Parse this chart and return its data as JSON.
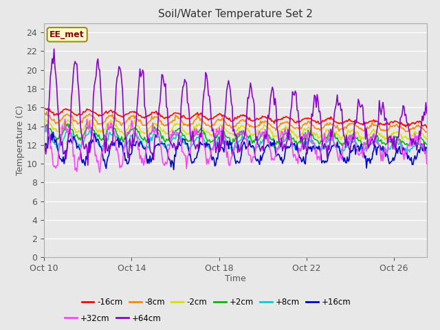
{
  "title": "Soil/Water Temperature Set 2",
  "xlabel": "Time",
  "ylabel": "Temperature (C)",
  "annotation": "EE_met",
  "ylim": [
    0,
    25
  ],
  "yticks": [
    0,
    2,
    4,
    6,
    8,
    10,
    12,
    14,
    16,
    18,
    20,
    22,
    24
  ],
  "xlim_days": 17.5,
  "xtick_pos": [
    0,
    4,
    8,
    12,
    16
  ],
  "xtick_labels": [
    "Oct 10",
    "Oct 14",
    "Oct 18",
    "Oct 22",
    "Oct 26"
  ],
  "series_order": [
    "-16cm",
    "-8cm",
    "-2cm",
    "+2cm",
    "+8cm",
    "+16cm",
    "+32cm",
    "+64cm"
  ],
  "series_colors": {
    "-16cm": "#ff0000",
    "-8cm": "#ff8800",
    "-2cm": "#dddd00",
    "+2cm": "#00bb00",
    "+8cm": "#00cccc",
    "+16cm": "#0000cc",
    "+32cm": "#ff44ff",
    "+64cm": "#8800cc"
  },
  "bg_color": "#e8e8e8",
  "grid_color": "#ffffff",
  "linewidth": 1.2,
  "legend_ncol_row1": 6,
  "legend_ncol_row2": 2
}
